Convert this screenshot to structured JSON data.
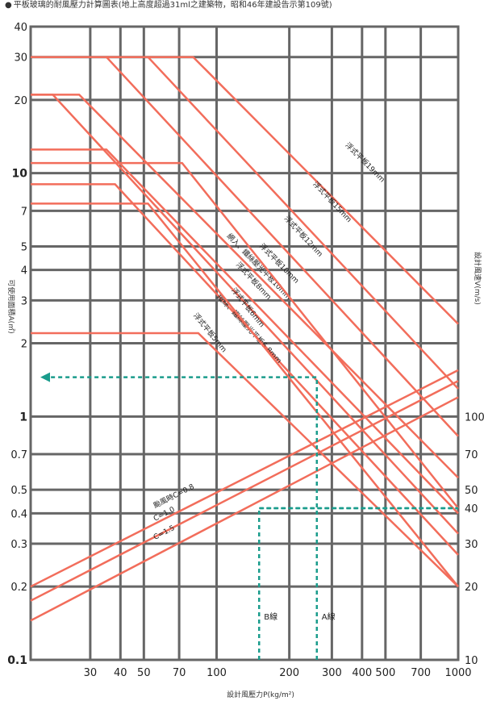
{
  "title": "平板玻璃的耐風壓力計算圖表(地上高度超過31ml之建築物，昭和46年建設告示第109號)",
  "chart_data": {
    "type": "line",
    "x_axis": {
      "label": "設計風壓力P(kg/m²)",
      "scale": "log",
      "range": [
        17,
        1000
      ],
      "ticks": [
        30,
        40,
        50,
        70,
        100,
        200,
        300,
        400,
        500,
        700,
        1000
      ]
    },
    "y_axis": {
      "label": "可使用面積A(㎡)",
      "scale": "log",
      "range": [
        0.1,
        40
      ],
      "ticks": [
        0.1,
        0.2,
        0.3,
        0.4,
        0.5,
        0.7,
        1,
        2,
        3,
        4,
        5,
        7,
        10,
        20,
        30,
        40
      ]
    },
    "y2_axis": {
      "label": "設計風速V(m/s)",
      "ticks": [
        {
          "label": "10",
          "y_at": 0.1
        },
        {
          "label": "20",
          "y_at": 0.2
        },
        {
          "label": "30",
          "y_at": 0.3
        },
        {
          "label": "40",
          "y_at": 0.42
        },
        {
          "label": "50",
          "y_at": 0.5
        },
        {
          "label": "70",
          "y_at": 0.7
        },
        {
          "label": "100",
          "y_at": 1.0
        }
      ]
    },
    "grid": true,
    "glass_series": [
      {
        "name": "浮式平板19mm",
        "flat_area": 30,
        "flat_x_end": 80,
        "slope_end": [
          1000,
          2.4
        ],
        "label_at": [
          340,
          13
        ]
      },
      {
        "name": "浮式平板15mm",
        "flat_area": 30,
        "flat_x_end": 52,
        "slope_end": [
          1000,
          1.3
        ],
        "label_at": [
          250,
          9
        ]
      },
      {
        "name": "浮式平板12mm",
        "flat_area": 30,
        "flat_x_end": 35,
        "slope_end": [
          1000,
          0.83
        ],
        "label_at": [
          190,
          6.5
        ]
      },
      {
        "name": "浮式平板10mm",
        "flat_area": 21,
        "flat_x_end": 27,
        "slope_end": [
          1000,
          0.56
        ],
        "label_at": [
          150,
          5
        ]
      },
      {
        "name": "網入、鐵絲壓光平板10mm",
        "flat_area": 12.5,
        "flat_x_end": 35,
        "slope_end": [
          1000,
          0.4
        ],
        "label_at": [
          110,
          5.5
        ]
      },
      {
        "name": "浮式平板8mm",
        "flat_area": 21,
        "flat_x_end": 21,
        "slope_end": [
          1000,
          0.33
        ],
        "label_at": [
          120,
          4.2
        ]
      },
      {
        "name": "浮式平板6mm",
        "flat_area": 11,
        "flat_x_end": 72,
        "slope_end": [
          1000,
          0.42
        ],
        "label_at": [
          115,
          3.3
        ]
      },
      {
        "name": "鐵絲、鐵絲壓光平板6.8mm",
        "flat_area": 9,
        "flat_x_end": 38,
        "slope_end": [
          1000,
          0.27
        ],
        "label_at": [
          100,
          3.1
        ]
      },
      {
        "name": "浮式平板5mm",
        "flat_area": 7.5,
        "flat_x_end": 52,
        "slope_end": [
          1000,
          0.2
        ],
        "label_at": [
          80,
          2.6
        ]
      },
      {
        "name": "",
        "flat_area": 2.2,
        "flat_x_end": 84,
        "slope_end": [
          1000,
          0.2
        ],
        "label_at": null
      }
    ],
    "wind_series": [
      {
        "name": "颱風時C=0.8",
        "points": [
          [
            17,
            0.2
          ],
          [
            1000,
            1.55
          ]
        ]
      },
      {
        "name": "C=1.0",
        "points": [
          [
            17,
            0.175
          ],
          [
            1000,
            1.4
          ]
        ]
      },
      {
        "name": "C=1.5",
        "points": [
          [
            17,
            0.145
          ],
          [
            1000,
            1.2
          ]
        ]
      }
    ],
    "example": {
      "line_a_label": "A線",
      "line_b_label": "B線",
      "a_pressure": 260,
      "b_pressure": 150,
      "a_area": 1.45,
      "b_area": 0.42
    }
  }
}
